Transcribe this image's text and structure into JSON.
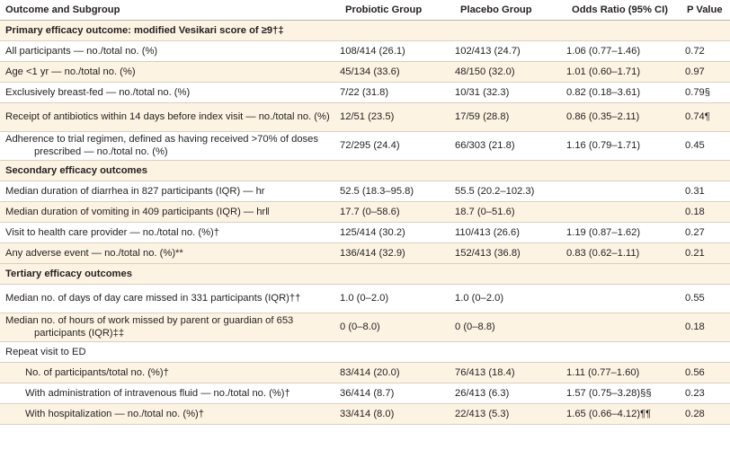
{
  "headers": {
    "outcome": "Outcome and Subgroup",
    "probiotic": "Probiotic Group",
    "placebo": "Placebo Group",
    "odds": "Odds Ratio (95% CI)",
    "pvalue": "P Value"
  },
  "sections": [
    {
      "title": "Primary efficacy outcome: modified Vesikari score of ≥9†‡"
    },
    {
      "title": "Secondary efficacy outcomes"
    },
    {
      "title": "Tertiary efficacy outcomes"
    }
  ],
  "rows": [
    {
      "label": "All participants — no./total no. (%)",
      "probiotic": "108/414 (26.1)",
      "placebo": "102/413 (24.7)",
      "odds": "1.06 (0.77–1.46)",
      "p": "0.72"
    },
    {
      "label": "Age <1 yr — no./total no. (%)",
      "probiotic": "45/134 (33.6)",
      "placebo": "48/150 (32.0)",
      "odds": "1.01 (0.60–1.71)",
      "p": "0.97"
    },
    {
      "label": "Exclusively breast-fed — no./total no. (%)",
      "probiotic": "7/22 (31.8)",
      "placebo": "10/31 (32.3)",
      "odds": "0.82 (0.18–3.61)",
      "p": "0.79§"
    },
    {
      "label": "Receipt of antibiotics within 14 days before index visit — no./total no. (%)",
      "probiotic": "12/51 (23.5)",
      "placebo": "17/59 (28.8)",
      "odds": "0.86 (0.35–2.11)",
      "p": "0.74¶"
    },
    {
      "label": "Adherence to trial regimen, defined as having received >70% of doses prescribed — no./total no. (%)",
      "probiotic": "72/295 (24.4)",
      "placebo": "66/303 (21.8)",
      "odds": "1.16 (0.79–1.71)",
      "p": "0.45"
    },
    {
      "label": "Median duration of diarrhea in 827 participants (IQR) — hr",
      "probiotic": "52.5 (18.3–95.8)",
      "placebo": "55.5 (20.2–102.3)",
      "odds": "",
      "p": "0.31"
    },
    {
      "label": "Median duration of vomiting in 409 participants (IQR) — hr‖",
      "probiotic": "17.7 (0–58.6)",
      "placebo": "18.7 (0–51.6)",
      "odds": "",
      "p": "0.18"
    },
    {
      "label": "Visit to health care provider — no./total no. (%)†",
      "probiotic": "125/414 (30.2)",
      "placebo": "110/413 (26.6)",
      "odds": "1.19 (0.87–1.62)",
      "p": "0.27"
    },
    {
      "label": "Any adverse event — no./total no. (%)**",
      "probiotic": "136/414 (32.9)",
      "placebo": "152/413 (36.8)",
      "odds": "0.83 (0.62–1.11)",
      "p": "0.21"
    },
    {
      "label": "Median no. of days of day care missed in 331 participants (IQR)††",
      "probiotic": "1.0 (0–2.0)",
      "placebo": "1.0 (0–2.0)",
      "odds": "",
      "p": "0.55"
    },
    {
      "label": "Median no. of hours of work missed by parent or guardian of 653 participants (IQR)‡‡",
      "probiotic": "0 (0–8.0)",
      "placebo": "0 (0–8.8)",
      "odds": "",
      "p": "0.18"
    },
    {
      "label": "Repeat visit to ED",
      "probiotic": "",
      "placebo": "",
      "odds": "",
      "p": ""
    },
    {
      "label": "No. of participants/total no. (%)†",
      "probiotic": "83/414 (20.0)",
      "placebo": "76/413 (18.4)",
      "odds": "1.11 (0.77–1.60)",
      "p": "0.56"
    },
    {
      "label": "With administration of intravenous fluid — no./total no. (%)†",
      "probiotic": "36/414 (8.7)",
      "placebo": "26/413 (6.3)",
      "odds": "1.57 (0.75–3.28)§§",
      "p": "0.23"
    },
    {
      "label": "With hospitalization — no./total no. (%)†",
      "probiotic": "33/414 (8.0)",
      "placebo": "22/413 (5.3)",
      "odds": "1.65 (0.66–4.12)¶¶",
      "p": "0.28"
    }
  ]
}
